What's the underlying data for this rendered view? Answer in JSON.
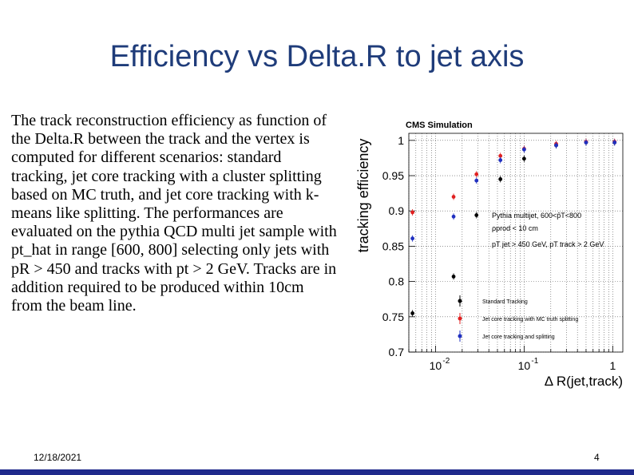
{
  "slide": {
    "title": "Efficiency vs Delta.R to jet axis",
    "body": "The track reconstruction efficiency as function of the Delta.R between the track and the vertex is computed for different scenarios: standard tracking, jet core tracking with a cluster splitting based on MC truth, and jet core tracking with k-means like splitting. The performances are evaluated on the pythia QCD multi jet sample with pt_hat in range [600, 800] selecting only jets with pR > 450 and tracks with pt > 2 GeV. Tracks are in addition required to be produced within 10cm from the beam line.",
    "date": "12/18/2021",
    "page_number": "4"
  },
  "chart_data": {
    "type": "scatter",
    "header": "CMS Simulation",
    "ylabel": "tracking efficiency",
    "xlabel": "Δ R(jet,track)",
    "x_scale": "log",
    "xlim": [
      0.005,
      1.3
    ],
    "ylim": [
      0.7,
      1.01
    ],
    "grid": true,
    "y_ticks": [
      "0.7",
      "0.75",
      "0.8",
      "0.85",
      "0.9",
      "0.95",
      "1"
    ],
    "x_ticks": [
      {
        "value": 0.01,
        "base": "10",
        "exp": "-2"
      },
      {
        "value": 0.1,
        "base": "10",
        "exp": "-1"
      },
      {
        "value": 1,
        "base": "1",
        "exp": ""
      }
    ],
    "annotation": {
      "line1": "Pythia multijet, 600<p̂T<800",
      "line2": "ρprod < 10 cm",
      "line3": "pT jet > 450 GeV, pT track > 2 GeV"
    },
    "legend_position": "bottom-left",
    "series": [
      {
        "name": "Standard Tracking",
        "color": "#000000",
        "points": [
          {
            "x": 0.0055,
            "y": 0.755
          },
          {
            "x": 0.016,
            "y": 0.807
          },
          {
            "x": 0.029,
            "y": 0.894
          },
          {
            "x": 0.054,
            "y": 0.945
          },
          {
            "x": 0.1,
            "y": 0.974
          },
          {
            "x": 0.23,
            "y": 0.993
          },
          {
            "x": 0.5,
            "y": 0.997
          },
          {
            "x": 1.05,
            "y": 0.997
          }
        ]
      },
      {
        "name": "Jet core tracking with MC truth splitting",
        "color": "#e02020",
        "points": [
          {
            "x": 0.0055,
            "y": 0.898
          },
          {
            "x": 0.016,
            "y": 0.92
          },
          {
            "x": 0.029,
            "y": 0.952
          },
          {
            "x": 0.054,
            "y": 0.978
          },
          {
            "x": 0.1,
            "y": 0.988
          },
          {
            "x": 0.23,
            "y": 0.995
          },
          {
            "x": 0.5,
            "y": 0.998
          },
          {
            "x": 1.05,
            "y": 0.998
          }
        ]
      },
      {
        "name": "Jet core tracking and splitting",
        "color": "#2030c0",
        "points": [
          {
            "x": 0.0055,
            "y": 0.861
          },
          {
            "x": 0.016,
            "y": 0.892
          },
          {
            "x": 0.029,
            "y": 0.943
          },
          {
            "x": 0.054,
            "y": 0.972
          },
          {
            "x": 0.1,
            "y": 0.987
          },
          {
            "x": 0.23,
            "y": 0.993
          },
          {
            "x": 0.5,
            "y": 0.997
          },
          {
            "x": 1.05,
            "y": 0.997
          }
        ]
      }
    ]
  }
}
